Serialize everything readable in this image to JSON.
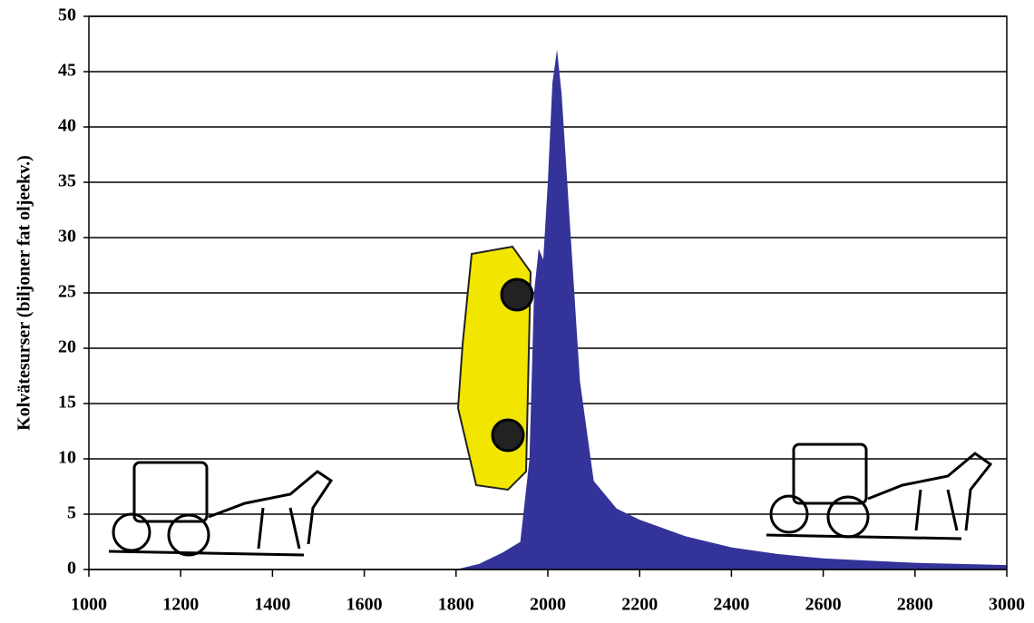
{
  "chart_data": {
    "type": "area",
    "ylabel": "Kolvätesurser (biljoner fat oljeekv.)",
    "x": [
      1800,
      1850,
      1900,
      1940,
      1960,
      1970,
      1980,
      1990,
      2000,
      2010,
      2020,
      2030,
      2050,
      2070,
      2100,
      2150,
      2200,
      2300,
      2400,
      2500,
      2600,
      2700,
      2800,
      2900,
      3000
    ],
    "series": [
      {
        "color": "#333399",
        "values": [
          0,
          0.5,
          1.5,
          2.5,
          10,
          25,
          29,
          28,
          35,
          44,
          47,
          43,
          30,
          17,
          8,
          5.5,
          4.5,
          3,
          2,
          1.4,
          1,
          0.8,
          0.6,
          0.5,
          0.4
        ]
      }
    ],
    "xlim": [
      1000,
      3000
    ],
    "xticks": [
      1000,
      1200,
      1400,
      1600,
      1800,
      2000,
      2200,
      2400,
      2600,
      2800,
      3000
    ],
    "ylim": [
      0,
      50
    ],
    "yticks": [
      0,
      5,
      10,
      15,
      20,
      25,
      30,
      35,
      40,
      45,
      50
    ],
    "grid": true
  }
}
